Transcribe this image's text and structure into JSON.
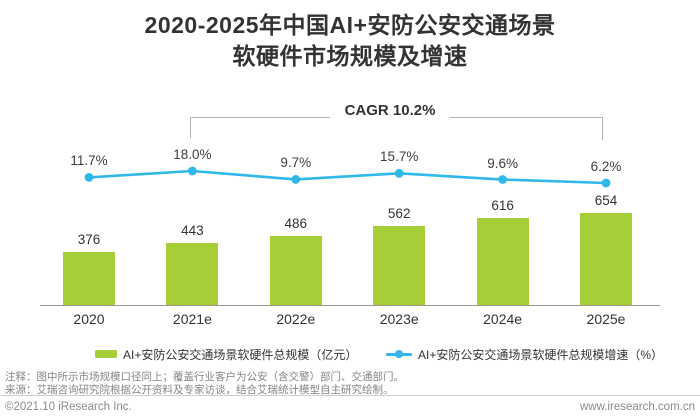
{
  "title": {
    "line1": "2020-2025年中国AI+安防公安交通场景",
    "line2": "软硬件市场规模及增速"
  },
  "chart_data": {
    "type": "bar",
    "categories": [
      "2020",
      "2021e",
      "2022e",
      "2023e",
      "2024e",
      "2025e"
    ],
    "series": [
      {
        "name": "AI+安防公安交通场景软硬件总规模（亿元）",
        "type": "bar",
        "values": [
          376,
          443,
          486,
          562,
          616,
          654
        ],
        "color": "#a5ce39"
      },
      {
        "name": "AI+安防公安交通场景软硬件总规模增速（%）",
        "type": "line",
        "values": [
          11.7,
          18.0,
          9.7,
          15.7,
          9.6,
          6.2
        ],
        "labels": [
          "11.7%",
          "18.0%",
          "9.7%",
          "15.7%",
          "9.6%",
          "6.2%"
        ],
        "color": "#2fb8e9"
      }
    ],
    "annotation": {
      "label": "CAGR 10.2%",
      "from_category": "2021e",
      "to_category": "2025e"
    },
    "xlabel": "",
    "ylabel": "",
    "y_axis_visible": false,
    "grid": false,
    "legend_position": "bottom"
  },
  "footer": {
    "note1": "注释：图中所示市场规模口径同上；覆盖行业客户为公安（含交警）部门、交通部门。",
    "note2": "来源：艾瑞咨询研究院根据公开资料及专家访谈，结合艾瑞统计模型自主研究绘制。",
    "copyright": "©2021.10 iResearch Inc.",
    "website": "www.iresearch.com.cn"
  },
  "colors": {
    "bar": "#a5ce39",
    "line": "#2fb8e9",
    "title": "#333333",
    "axis": "#999999",
    "bracket": "#b3b3b3"
  }
}
